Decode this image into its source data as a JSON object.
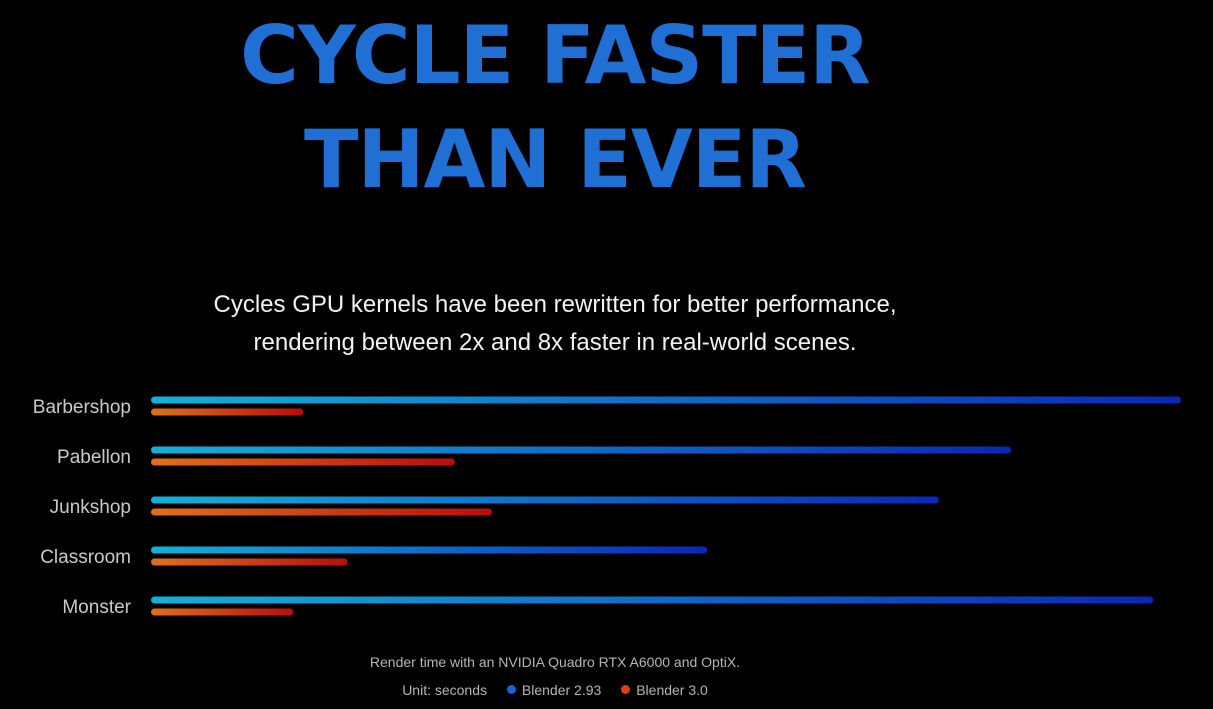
{
  "headline": {
    "line1": "CYCLE FASTER",
    "line2": "THAN EVER"
  },
  "subtitle": {
    "line1": "Cycles GPU kernels have been rewritten for better performance,",
    "line2": "rendering between 2x and 8x faster in real-world scenes."
  },
  "footnote": "Render time with an NVIDIA Quadro RTX A6000 and OptiX.",
  "legend": {
    "unit_label": "Unit: seconds",
    "series_a": "Blender 2.93",
    "series_b": "Blender 3.0",
    "color_a": "#1a62d6",
    "color_b": "#d8420f"
  },
  "chart_data": {
    "type": "bar",
    "orientation": "horizontal",
    "categories": [
      "Barbershop",
      "Pabellon",
      "Junkshop",
      "Classroom",
      "Monster"
    ],
    "series": [
      {
        "name": "Blender 2.93",
        "values": [
          100,
          83.5,
          76.5,
          54,
          97.3
        ],
        "gradient": [
          "#14b0d8",
          "#0a27b8"
        ]
      },
      {
        "name": "Blender 3.0",
        "values": [
          14.8,
          29.5,
          33.1,
          19.1,
          13.8
        ],
        "gradient": [
          "#e0701b",
          "#b80d0d"
        ]
      }
    ],
    "xlim": [
      0,
      100
    ],
    "grid": false,
    "xlabel": "",
    "ylabel": "",
    "legend_position": "bottom"
  }
}
